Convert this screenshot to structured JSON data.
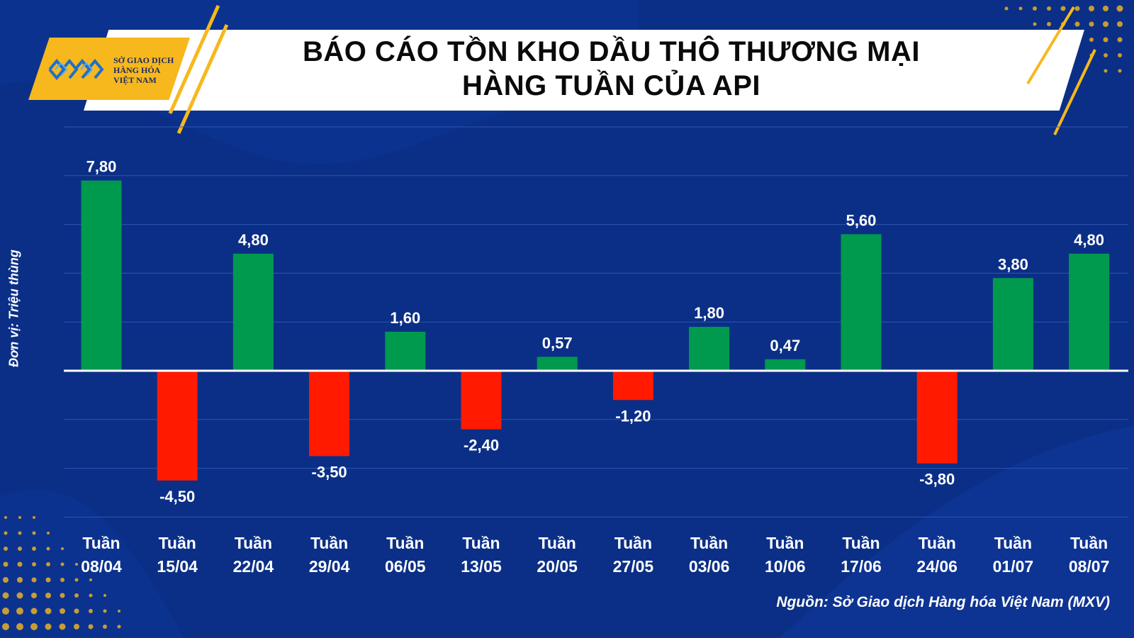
{
  "header": {
    "title_line1": "BÁO CÁO TỒN KHO DẦU THÔ THƯƠNG MẠI",
    "title_line2": "HÀNG TUẦN CỦA API"
  },
  "logo": {
    "line1": "SỞ GIAO DỊCH",
    "line2": "HÀNG HÓA",
    "line3": "VIỆT NAM"
  },
  "source": "Nguồn: Sở Giao dịch Hàng hóa Việt Nam (MXV)",
  "colors": {
    "background": "#0b2f86",
    "positive": "#009a4e",
    "negative": "#ff1a00",
    "accent": "#f7b81d",
    "grid": "#2d56b0"
  },
  "chart_data": {
    "type": "bar",
    "ylabel": "Đơn vị: Triệu thùng",
    "category_prefix": "Tuần",
    "categories": [
      "08/04",
      "15/04",
      "22/04",
      "29/04",
      "06/05",
      "13/05",
      "20/05",
      "27/05",
      "03/06",
      "10/06",
      "17/06",
      "24/06",
      "01/07",
      "08/07"
    ],
    "values": [
      7.8,
      -4.5,
      4.8,
      -3.5,
      1.6,
      -2.4,
      0.57,
      -1.2,
      1.8,
      0.47,
      5.6,
      -3.8,
      3.8,
      4.8
    ],
    "value_labels": [
      "7,80",
      "-4,50",
      "4,80",
      "-3,50",
      "1,60",
      "-2,40",
      "0,57",
      "-1,20",
      "1,80",
      "0,47",
      "5,60",
      "-3,80",
      "3,80",
      "4,80"
    ],
    "ylim": [
      -6,
      10
    ],
    "grid": true,
    "legend": "none"
  }
}
